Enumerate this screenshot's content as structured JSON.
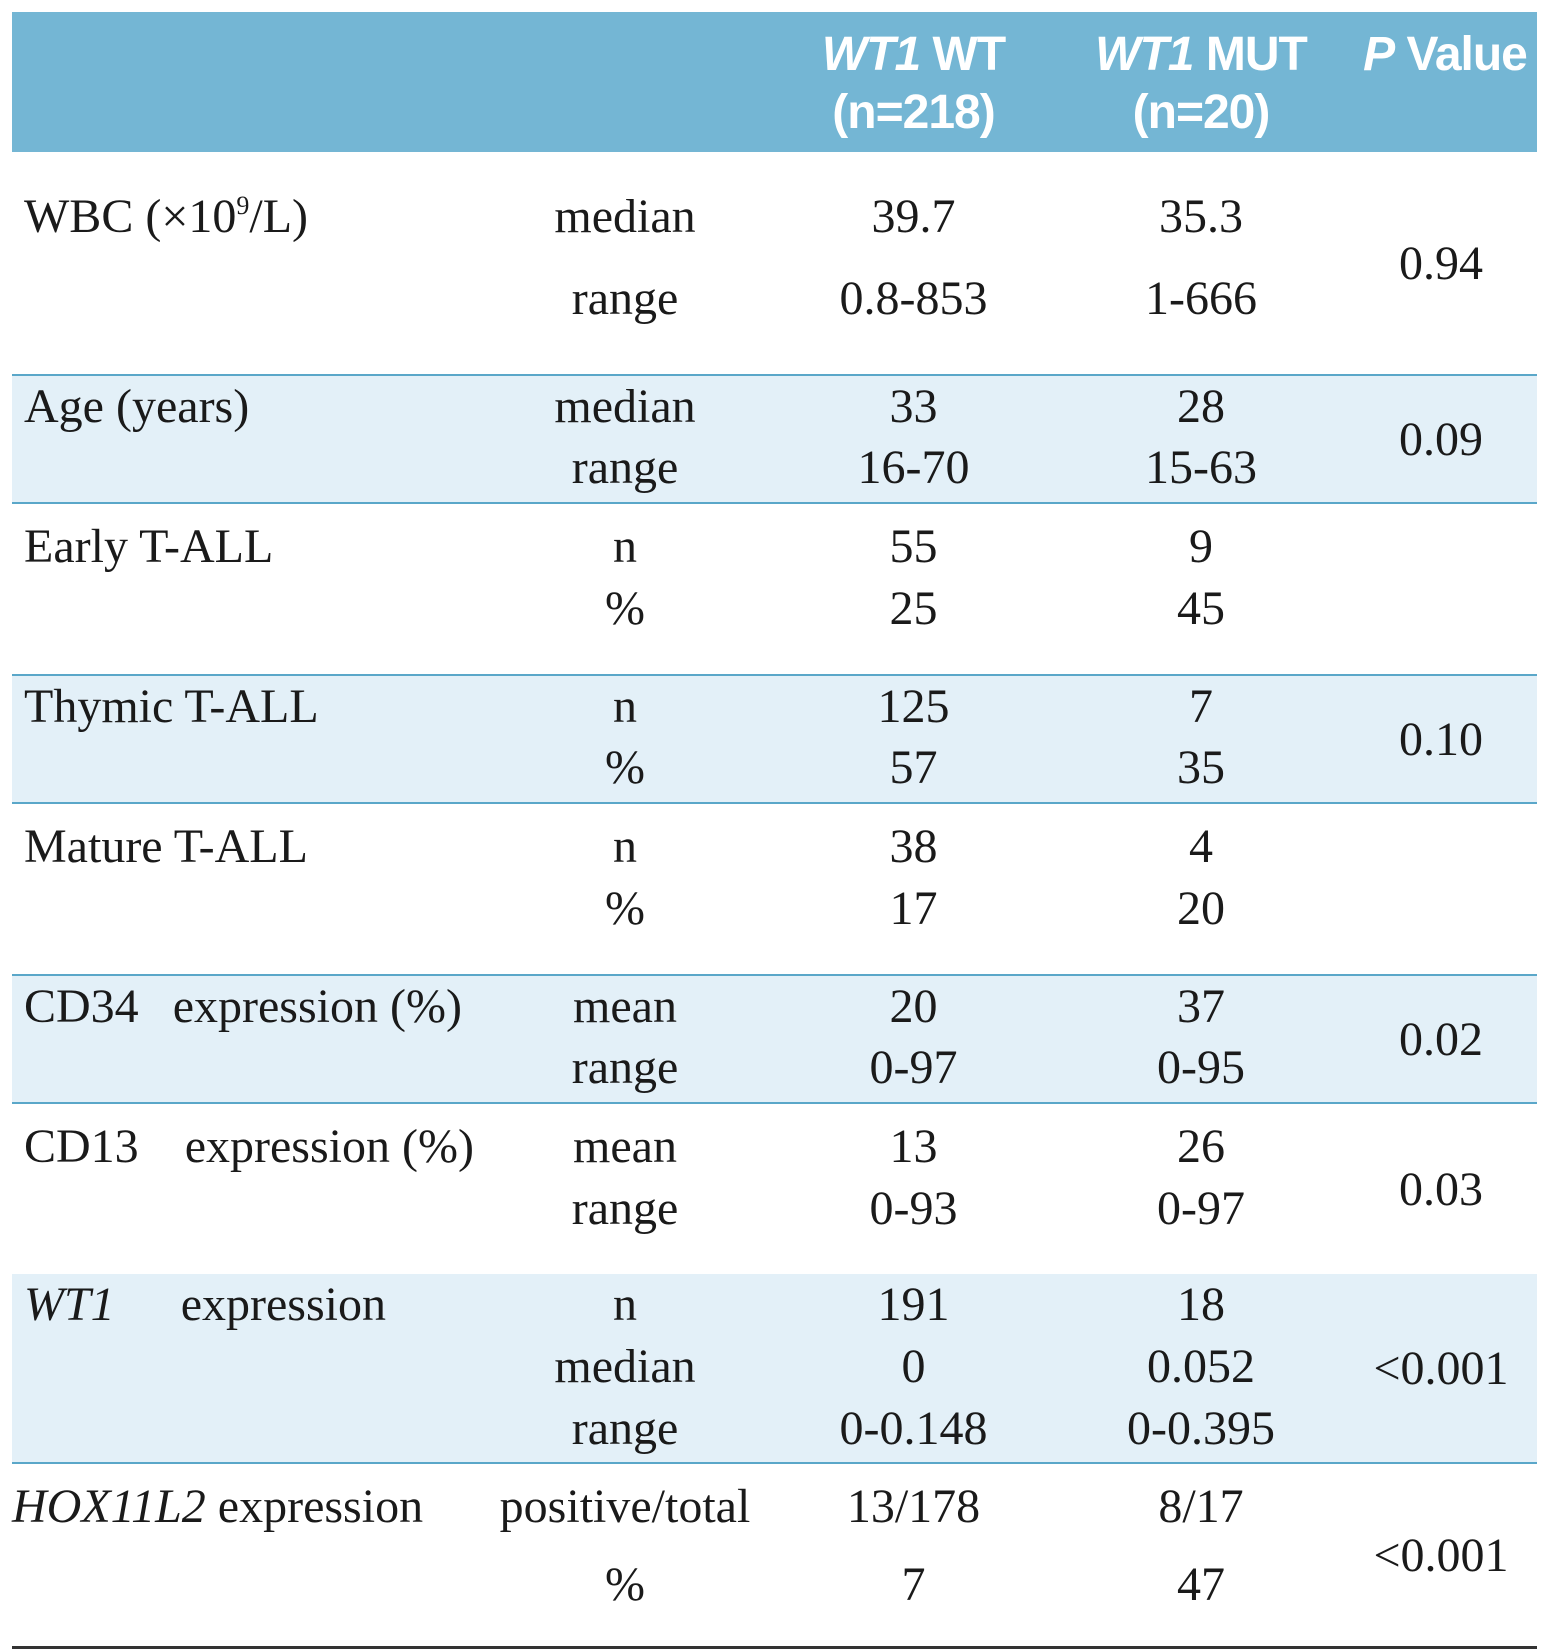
{
  "header": {
    "col_wt": {
      "gene": "WT1",
      "rest": " WT",
      "n": "(n=218)"
    },
    "col_mut": {
      "gene": "WT1",
      "rest": " MUT",
      "n": "(n=20)"
    },
    "col_p": {
      "italic": "P",
      "rest": " Value"
    }
  },
  "rows": {
    "wbc": {
      "label_pre": "WBC (×10",
      "label_sup": "9",
      "label_post": "/L)",
      "stats": [
        "median",
        "range"
      ],
      "wt": [
        "39.7",
        "0.8-853"
      ],
      "mut": [
        "35.3",
        "1-666"
      ],
      "p": "0.94"
    },
    "age": {
      "label": "Age (years)",
      "stats": [
        "median",
        "range"
      ],
      "wt": [
        "33",
        "16-70"
      ],
      "mut": [
        "28",
        "15-63"
      ],
      "p": "0.09"
    },
    "early": {
      "label": "Early T-ALL",
      "stats": [
        "n",
        "%"
      ],
      "wt": [
        "55",
        "25"
      ],
      "mut": [
        "9",
        "45"
      ],
      "p": ""
    },
    "thymic": {
      "label": "Thymic T-ALL",
      "stats": [
        "n",
        "%"
      ],
      "wt": [
        "125",
        "57"
      ],
      "mut": [
        "7",
        "35"
      ],
      "p": "0.10"
    },
    "mature": {
      "label": "Mature T-ALL",
      "stats": [
        "n",
        "%"
      ],
      "wt": [
        "38",
        "17"
      ],
      "mut": [
        "4",
        "20"
      ],
      "p": ""
    },
    "cd34": {
      "label_a": "CD34",
      "label_b": "expression (%)",
      "stats": [
        "mean",
        "range"
      ],
      "wt": [
        "20",
        "0-97"
      ],
      "mut": [
        "37",
        "0-95"
      ],
      "p": "0.02"
    },
    "cd13": {
      "label_a": "CD13",
      "label_b": "expression (%)",
      "stats": [
        "mean",
        "range"
      ],
      "wt": [
        "13",
        "0-93"
      ],
      "mut": [
        "26",
        "0-97"
      ],
      "p": "0.03"
    },
    "wt1": {
      "label_a": "WT1",
      "label_b": "expression",
      "stats": [
        "n",
        "median",
        "range"
      ],
      "wt": [
        "191",
        "0",
        "0-0.148"
      ],
      "mut": [
        "18",
        "0.052",
        "0-0.395"
      ],
      "p": "<0.001"
    },
    "hox": {
      "label_a": "HOX11L2",
      "label_b": " expression",
      "stats": [
        "positive/total",
        "%"
      ],
      "wt": [
        "13/178",
        "7"
      ],
      "mut": [
        "8/17",
        "47"
      ],
      "p": "<0.001"
    }
  }
}
